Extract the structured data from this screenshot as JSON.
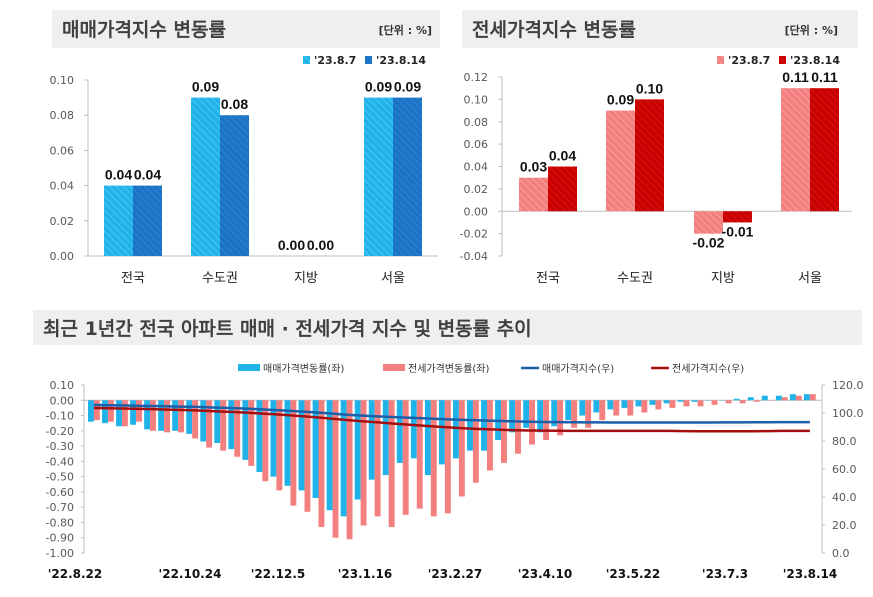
{
  "colors": {
    "sale_a": "#1fb3ea",
    "sale_b": "#1a73c4",
    "jeonse_a": "#f47f7f",
    "jeonse_b": "#c80000",
    "sale_line": "#1a5fa8",
    "jeonse_line": "#a50f0f",
    "title_bg": "#efefef"
  },
  "chart_data": [
    {
      "type": "bar",
      "title": "매매가격지수 변동률",
      "unit": "[단위 : %]",
      "categories": [
        "전국",
        "수도권",
        "지방",
        "서울"
      ],
      "series": [
        {
          "name": "'23.8.7",
          "values": [
            0.04,
            0.09,
            0.0,
            0.09
          ]
        },
        {
          "name": "'23.8.14",
          "values": [
            0.04,
            0.08,
            0.0,
            0.09
          ]
        }
      ],
      "ylim": [
        0,
        0.1
      ],
      "yticks": [
        "0.10",
        "0.08",
        "0.06",
        "0.04",
        "0.02",
        "0.00"
      ],
      "legend": "top-right",
      "grid": false
    },
    {
      "type": "bar",
      "title": "전세가격지수 변동률",
      "unit": "[단위 : %]",
      "categories": [
        "전국",
        "수도권",
        "지방",
        "서울"
      ],
      "series": [
        {
          "name": "'23.8.7",
          "values": [
            0.03,
            0.09,
            -0.02,
            0.11
          ]
        },
        {
          "name": "'23.8.14",
          "values": [
            0.04,
            0.1,
            -0.01,
            0.11
          ]
        }
      ],
      "ylim": [
        -0.04,
        0.12
      ],
      "yticks": [
        "0.12",
        "0.10",
        "0.08",
        "0.06",
        "0.04",
        "0.02",
        "0.00",
        "-0.02",
        "-0.04"
      ],
      "legend": "top-right",
      "grid": false
    },
    {
      "type": "bar+line",
      "title": "최근 1년간 전국 아파트 매매 · 전세가격 지수 및 변동률 추이",
      "xticks": [
        "'22.8.22",
        "'22.10.24",
        "'22.12.5",
        "'23.1.16",
        "'23.2.27",
        "'23.4.10",
        "'23.5.22",
        "'23.7.3",
        "'23.8.14"
      ],
      "ylim_left": [
        -1.0,
        0.1
      ],
      "yticks_left": [
        "0.10",
        "0.00",
        "-0.10",
        "-0.20",
        "-0.30",
        "-0.40",
        "-0.50",
        "-0.60",
        "-0.70",
        "-0.80",
        "-0.90",
        "-1.00"
      ],
      "ylim_right": [
        0,
        120
      ],
      "yticks_right": [
        "120.0",
        "100.0",
        "80.0",
        "60.0",
        "40.0",
        "20.0",
        "0.0"
      ],
      "legend": "top-center",
      "grid": false,
      "series": [
        {
          "name": "매매가격변동률(좌)",
          "kind": "bar",
          "axis": "left",
          "values": [
            -0.14,
            -0.15,
            -0.17,
            -0.16,
            -0.19,
            -0.2,
            -0.2,
            -0.22,
            -0.27,
            -0.28,
            -0.32,
            -0.39,
            -0.47,
            -0.5,
            -0.56,
            -0.59,
            -0.64,
            -0.72,
            -0.76,
            -0.65,
            -0.52,
            -0.49,
            -0.41,
            -0.38,
            -0.49,
            -0.42,
            -0.38,
            -0.33,
            -0.33,
            -0.26,
            -0.21,
            -0.18,
            -0.21,
            -0.17,
            -0.13,
            -0.1,
            -0.08,
            -0.06,
            -0.05,
            -0.04,
            -0.03,
            -0.02,
            -0.01,
            -0.01,
            0.0,
            0.0,
            0.01,
            0.02,
            0.03,
            0.03,
            0.04,
            0.04
          ]
        },
        {
          "name": "전세가격변동률(좌)",
          "kind": "bar",
          "axis": "left",
          "values": [
            -0.13,
            -0.14,
            -0.17,
            -0.14,
            -0.2,
            -0.21,
            -0.21,
            -0.25,
            -0.31,
            -0.33,
            -0.37,
            -0.43,
            -0.53,
            -0.59,
            -0.69,
            -0.73,
            -0.83,
            -0.9,
            -0.91,
            -0.82,
            -0.76,
            -0.83,
            -0.75,
            -0.71,
            -0.76,
            -0.74,
            -0.63,
            -0.54,
            -0.46,
            -0.41,
            -0.35,
            -0.29,
            -0.26,
            -0.23,
            -0.18,
            -0.18,
            -0.13,
            -0.1,
            -0.1,
            -0.08,
            -0.06,
            -0.05,
            -0.04,
            -0.04,
            -0.03,
            -0.02,
            -0.02,
            -0.01,
            0.0,
            0.02,
            0.03,
            0.04
          ]
        },
        {
          "name": "매매가격지수(우)",
          "kind": "line",
          "axis": "right",
          "values": [
            105.8,
            105.6,
            105.4,
            105.2,
            105.0,
            104.8,
            104.6,
            104.4,
            104.1,
            103.8,
            103.5,
            103.1,
            102.6,
            102.1,
            101.5,
            100.9,
            100.3,
            99.6,
            98.8,
            98.2,
            97.7,
            97.2,
            96.8,
            96.4,
            96.0,
            95.6,
            95.2,
            94.9,
            94.6,
            94.3,
            94.0,
            93.8,
            93.6,
            93.5,
            93.4,
            93.3,
            93.3,
            93.2,
            93.2,
            93.2,
            93.2,
            93.2,
            93.2,
            93.2,
            93.2,
            93.3,
            93.3,
            93.4,
            93.4,
            93.5,
            93.5,
            93.5
          ]
        },
        {
          "name": "전세가격지수(우)",
          "kind": "line",
          "axis": "right",
          "values": [
            103.6,
            103.4,
            103.2,
            103.0,
            102.8,
            102.5,
            102.2,
            101.9,
            101.5,
            101.1,
            100.7,
            100.2,
            99.6,
            99.0,
            98.3,
            97.6,
            96.8,
            95.9,
            95.0,
            94.2,
            93.5,
            92.7,
            92.0,
            91.3,
            90.6,
            89.9,
            89.3,
            88.8,
            88.4,
            88.0,
            87.7,
            87.5,
            87.4,
            87.3,
            87.2,
            87.2,
            87.2,
            87.2,
            87.2,
            87.2,
            87.2,
            87.2,
            87.1,
            87.0,
            86.9,
            86.9,
            86.9,
            87.0,
            87.1,
            87.2,
            87.2,
            87.2
          ]
        }
      ]
    }
  ]
}
